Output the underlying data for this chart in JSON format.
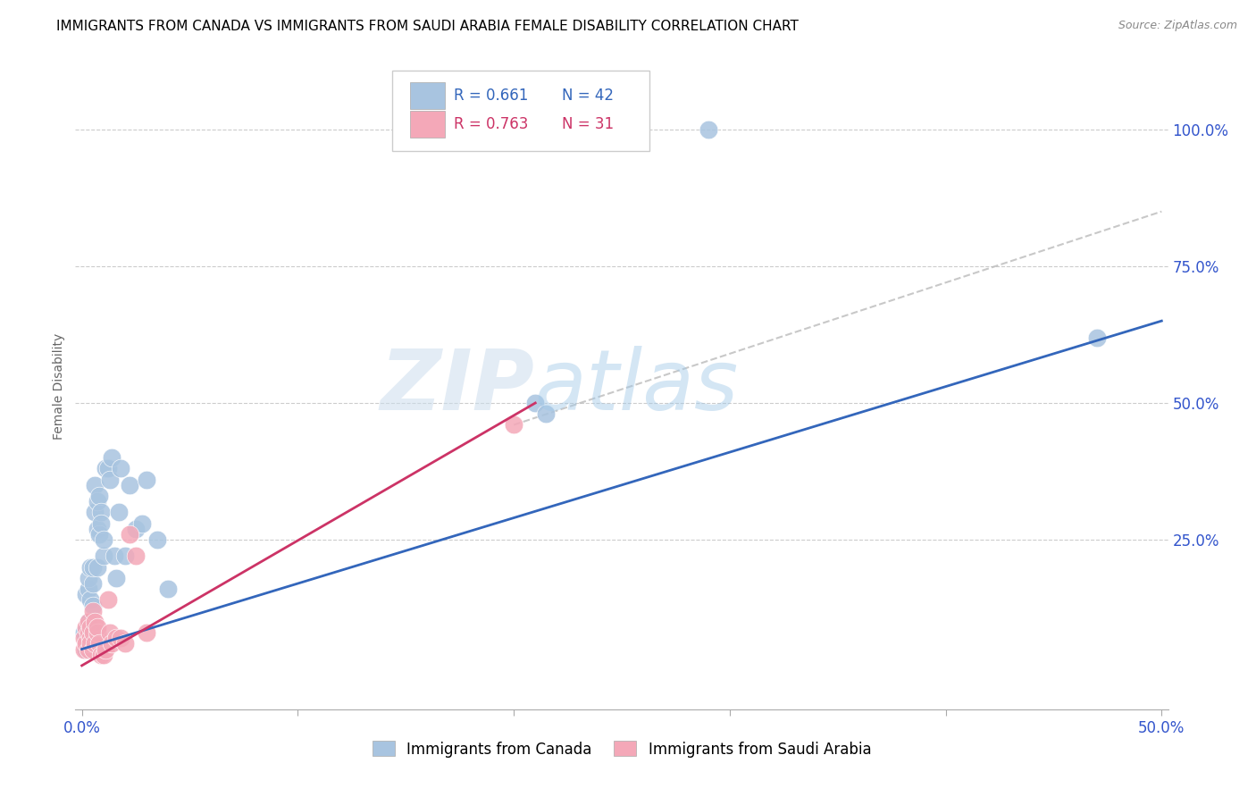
{
  "title": "IMMIGRANTS FROM CANADA VS IMMIGRANTS FROM SAUDI ARABIA FEMALE DISABILITY CORRELATION CHART",
  "source": "Source: ZipAtlas.com",
  "ylabel": "Female Disability",
  "xlim": [
    -0.003,
    0.503
  ],
  "ylim": [
    -0.06,
    1.12
  ],
  "xticks": [
    0.0,
    0.1,
    0.2,
    0.3,
    0.4,
    0.5
  ],
  "yticks": [
    0.0,
    0.25,
    0.5,
    0.75,
    1.0
  ],
  "xticklabels_show": [
    "0.0%",
    "50.0%"
  ],
  "xticklabels_show_pos": [
    0.0,
    0.5
  ],
  "yticklabels": [
    "",
    "25.0%",
    "50.0%",
    "75.0%",
    "100.0%"
  ],
  "canada_R": 0.661,
  "canada_N": 42,
  "saudi_R": 0.763,
  "saudi_N": 31,
  "canada_color": "#a8c4e0",
  "canada_line_color": "#3366bb",
  "saudi_color": "#f4a8b8",
  "saudi_line_color": "#cc3366",
  "tick_color": "#3355cc",
  "canada_x": [
    0.001,
    0.002,
    0.002,
    0.003,
    0.003,
    0.003,
    0.004,
    0.004,
    0.004,
    0.005,
    0.005,
    0.005,
    0.006,
    0.006,
    0.007,
    0.007,
    0.007,
    0.008,
    0.008,
    0.009,
    0.009,
    0.01,
    0.01,
    0.011,
    0.012,
    0.013,
    0.014,
    0.015,
    0.016,
    0.017,
    0.018,
    0.02,
    0.022,
    0.025,
    0.028,
    0.03,
    0.035,
    0.04,
    0.21,
    0.215,
    0.29,
    0.47
  ],
  "canada_y": [
    0.08,
    0.05,
    0.15,
    0.1,
    0.16,
    0.18,
    0.09,
    0.14,
    0.2,
    0.13,
    0.17,
    0.2,
    0.3,
    0.35,
    0.27,
    0.32,
    0.2,
    0.26,
    0.33,
    0.3,
    0.28,
    0.22,
    0.25,
    0.38,
    0.38,
    0.36,
    0.4,
    0.22,
    0.18,
    0.3,
    0.38,
    0.22,
    0.35,
    0.27,
    0.28,
    0.36,
    0.25,
    0.16,
    0.5,
    0.48,
    1.0,
    0.62
  ],
  "saudi_x": [
    0.001,
    0.001,
    0.002,
    0.002,
    0.003,
    0.003,
    0.003,
    0.004,
    0.004,
    0.004,
    0.005,
    0.005,
    0.005,
    0.006,
    0.006,
    0.007,
    0.007,
    0.008,
    0.009,
    0.01,
    0.011,
    0.012,
    0.013,
    0.014,
    0.016,
    0.018,
    0.02,
    0.022,
    0.025,
    0.03,
    0.2
  ],
  "saudi_y": [
    0.05,
    0.07,
    0.06,
    0.09,
    0.05,
    0.08,
    0.1,
    0.07,
    0.06,
    0.09,
    0.05,
    0.08,
    0.12,
    0.06,
    0.1,
    0.08,
    0.09,
    0.06,
    0.04,
    0.04,
    0.05,
    0.14,
    0.08,
    0.06,
    0.07,
    0.07,
    0.06,
    0.26,
    0.22,
    0.08,
    0.46
  ],
  "canada_line_x": [
    0.0,
    0.5
  ],
  "canada_line_y": [
    0.05,
    0.65
  ],
  "saudi_line_x": [
    0.0,
    0.21
  ],
  "saudi_line_y": [
    0.02,
    0.5
  ],
  "dash_line_x": [
    0.2,
    0.5
  ],
  "dash_line_y": [
    0.46,
    0.85
  ]
}
